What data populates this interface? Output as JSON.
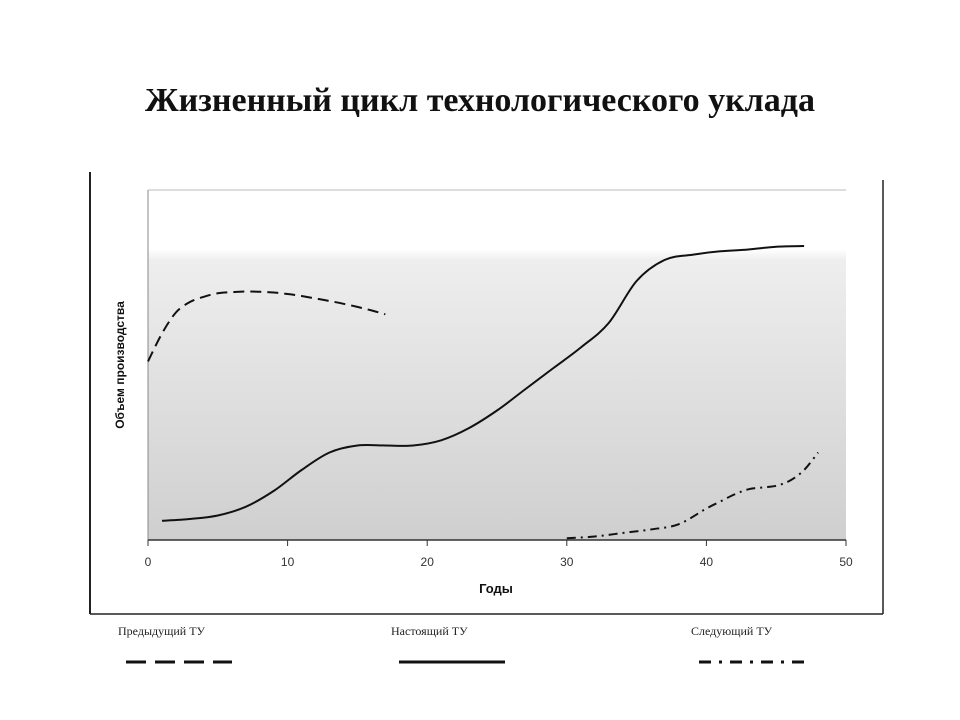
{
  "title": "Жизненный цикл технологического уклада",
  "chart_data": {
    "type": "line",
    "xlabel": "Годы",
    "ylabel": "Объем производства",
    "xlim": [
      0,
      50
    ],
    "ylim": [
      0,
      100
    ],
    "xticks": [
      0,
      10,
      20,
      30,
      40,
      50
    ],
    "grid": false,
    "legend_position": "bottom",
    "series": [
      {
        "name": "Предыдущий ТУ",
        "style": "dashed",
        "x": [
          0,
          1,
          2,
          3,
          4,
          5,
          6,
          7,
          8,
          9,
          10,
          11,
          12,
          13,
          14,
          15,
          16,
          17
        ],
        "y": [
          51,
          59,
          65,
          68,
          69.5,
          70.5,
          70.8,
          71,
          70.9,
          70.7,
          70.3,
          69.7,
          69,
          68.3,
          67.5,
          66.6,
          65.6,
          64.5
        ]
      },
      {
        "name": "Настоящий ТУ",
        "style": "solid",
        "x": [
          1,
          3,
          5,
          7,
          9,
          11,
          13,
          15,
          17,
          19,
          21,
          23,
          25,
          27,
          29,
          31,
          33,
          35,
          37,
          39,
          41,
          43,
          45,
          47
        ],
        "y": [
          5.5,
          6,
          7,
          9.5,
          14,
          20,
          25,
          27,
          27,
          27,
          28.5,
          32,
          37,
          43,
          49,
          55,
          62,
          74,
          80,
          81.5,
          82.5,
          83,
          83.8,
          84
        ]
      },
      {
        "name": "Следующий ТУ",
        "style": "dashdot",
        "x": [
          30,
          32,
          34,
          36,
          38,
          40,
          41,
          42,
          43,
          44,
          45,
          46,
          47,
          48
        ],
        "y": [
          0.5,
          1,
          2,
          3,
          4.5,
          9,
          11,
          13,
          14.5,
          15,
          15.5,
          17,
          20,
          25
        ]
      }
    ]
  }
}
